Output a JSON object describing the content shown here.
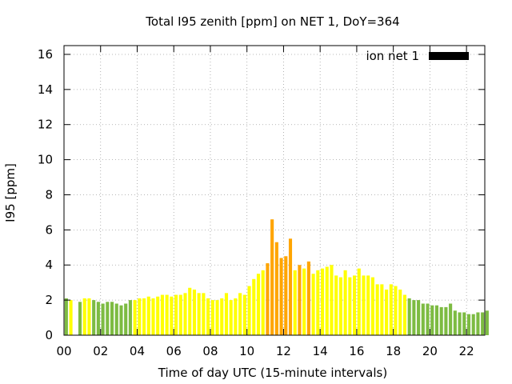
{
  "chart_data": {
    "type": "bar",
    "title": "Total I95 zenith [ppm] on NET 1, DoY=364",
    "xlabel": "Time of day UTC (15-minute intervals)",
    "ylabel": "I95 [ppm]",
    "xlim": [
      0,
      23
    ],
    "ylim": [
      0,
      16.5
    ],
    "x_ticks": [
      "00",
      "02",
      "04",
      "06",
      "08",
      "10",
      "12",
      "14",
      "16",
      "18",
      "20",
      "22"
    ],
    "y_ticks": [
      "0",
      "2",
      "4",
      "6",
      "8",
      "10",
      "12",
      "14",
      "16"
    ],
    "grid": true,
    "legend": {
      "position": "top-right",
      "label": "ion net 1",
      "color": "#000000"
    },
    "colors": {
      "green": "#7dbb42",
      "yellow": "#ffff00",
      "orange": "#ffa500"
    },
    "interval_hours": 0.25,
    "values": [
      2.1,
      2.0,
      null,
      1.9,
      2.1,
      2.1,
      2.0,
      1.9,
      1.8,
      1.9,
      1.9,
      1.8,
      1.7,
      1.8,
      2.0,
      2.0,
      2.1,
      2.1,
      2.2,
      2.1,
      2.2,
      2.3,
      2.3,
      2.2,
      2.3,
      2.3,
      2.4,
      2.7,
      2.6,
      2.4,
      2.4,
      2.1,
      2.0,
      2.0,
      2.1,
      2.4,
      2.0,
      2.1,
      2.4,
      2.3,
      2.8,
      3.2,
      3.5,
      3.7,
      4.1,
      6.6,
      5.3,
      4.4,
      4.5,
      5.5,
      3.7,
      4.0,
      3.8,
      4.2,
      3.5,
      3.7,
      3.8,
      3.9,
      4.0,
      3.4,
      3.3,
      3.7,
      3.3,
      3.4,
      3.8,
      3.4,
      3.4,
      3.3,
      2.9,
      2.9,
      2.6,
      2.9,
      2.8,
      2.6,
      2.3,
      2.1,
      2.0,
      2.0,
      1.8,
      1.8,
      1.7,
      1.7,
      1.6,
      1.6,
      1.8,
      1.4,
      1.3,
      1.3,
      1.2,
      1.2,
      1.3,
      1.3,
      1.4
    ],
    "categories": [
      "g",
      "y",
      "g",
      "g",
      "y",
      "y",
      "g",
      "g",
      "g",
      "g",
      "g",
      "g",
      "g",
      "g",
      "g",
      "y",
      "y",
      "y",
      "y",
      "y",
      "y",
      "y",
      "y",
      "y",
      "y",
      "y",
      "y",
      "y",
      "y",
      "y",
      "y",
      "y",
      "y",
      "y",
      "y",
      "y",
      "y",
      "y",
      "y",
      "y",
      "y",
      "y",
      "y",
      "y",
      "o",
      "o",
      "o",
      "o",
      "o",
      "o",
      "y",
      "o",
      "y",
      "o",
      "y",
      "y",
      "y",
      "y",
      "y",
      "y",
      "y",
      "y",
      "y",
      "y",
      "y",
      "y",
      "y",
      "y",
      "y",
      "y",
      "y",
      "y",
      "y",
      "y",
      "y",
      "g",
      "g",
      "g",
      "g",
      "g",
      "g",
      "g",
      "g",
      "g",
      "g",
      "g",
      "g",
      "g",
      "g",
      "g",
      "g",
      "g",
      "g"
    ]
  }
}
